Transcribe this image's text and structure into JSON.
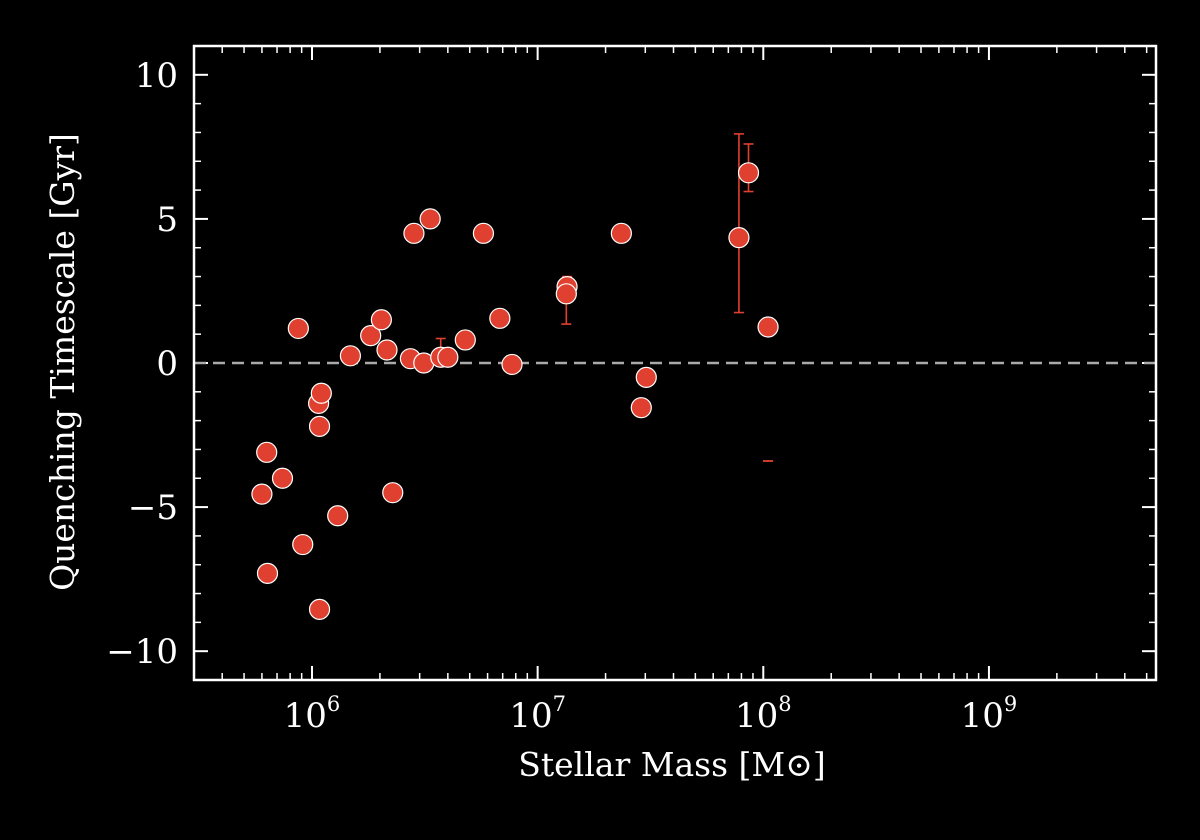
{
  "chart_data": {
    "type": "scatter",
    "title": "",
    "xlabel": "Stellar Mass [M⊙]",
    "ylabel": "Quenching Timescale [Gyr]",
    "x_scale": "log",
    "xlim": [
      300000,
      5500000000
    ],
    "ylim": [
      -11,
      11
    ],
    "x_ticks": [
      {
        "value": 1000000,
        "base": "10",
        "exp": "6"
      },
      {
        "value": 10000000,
        "base": "10",
        "exp": "7"
      },
      {
        "value": 100000000,
        "base": "10",
        "exp": "8"
      },
      {
        "value": 1000000000,
        "base": "10",
        "exp": "9"
      }
    ],
    "y_ticks": [
      {
        "value": 10,
        "label": "10"
      },
      {
        "value": 5,
        "label": "5"
      },
      {
        "value": 0,
        "label": "0"
      },
      {
        "value": -5,
        "label": "−5"
      },
      {
        "value": -10,
        "label": "−10"
      }
    ],
    "reference_line": {
      "y": 0,
      "style": "dashed",
      "color": "#aaaaaa"
    },
    "grid": false,
    "colors": {
      "marker": "#e0402f",
      "marker_edge": "#ffffff",
      "errorbar": "#e0402f",
      "axes": "#ffffff",
      "background": "#000000"
    },
    "points": [
      {
        "x": 600000,
        "y": -4.55
      },
      {
        "x": 630000,
        "y": -3.1
      },
      {
        "x": 635000,
        "y": -7.3
      },
      {
        "x": 740000,
        "y": -4.0
      },
      {
        "x": 870000,
        "y": 1.2
      },
      {
        "x": 910000,
        "y": -6.3
      },
      {
        "x": 1070000,
        "y": -1.4
      },
      {
        "x": 1080000,
        "y": -2.2
      },
      {
        "x": 1080000,
        "y": -8.55
      },
      {
        "x": 1100000,
        "y": -1.05
      },
      {
        "x": 1300000,
        "y": -5.3,
        "yerr_low": -5.55,
        "yerr_high": -5.05
      },
      {
        "x": 1480000,
        "y": 0.25
      },
      {
        "x": 1820000,
        "y": 0.95
      },
      {
        "x": 2030000,
        "y": 1.5
      },
      {
        "x": 2150000,
        "y": 0.45
      },
      {
        "x": 2280000,
        "y": -4.5
      },
      {
        "x": 2730000,
        "y": 0.15
      },
      {
        "x": 2830000,
        "y": 4.5
      },
      {
        "x": 3130000,
        "y": 0.0
      },
      {
        "x": 3340000,
        "y": 5.0
      },
      {
        "x": 3720000,
        "y": 0.2,
        "yerr_low": -0.1,
        "yerr_high": 0.85
      },
      {
        "x": 4000000,
        "y": 0.2
      },
      {
        "x": 4780000,
        "y": 0.8
      },
      {
        "x": 5750000,
        "y": 4.5
      },
      {
        "x": 6800000,
        "y": 1.55
      },
      {
        "x": 7700000,
        "y": -0.05
      },
      {
        "x": 13500000,
        "y": 2.65,
        "yerr_low": 2.2,
        "yerr_high": 3.0
      },
      {
        "x": 13400000,
        "y": 2.4,
        "yerr_low": 1.35,
        "yerr_high": 2.7
      },
      {
        "x": 23500000,
        "y": 4.5
      },
      {
        "x": 28800000,
        "y": -1.55
      },
      {
        "x": 30300000,
        "y": -0.5
      },
      {
        "x": 78000000,
        "y": 4.35,
        "yerr_low": 1.75,
        "yerr_high": 7.95
      },
      {
        "x": 86000000,
        "y": 6.6,
        "yerr_low": 5.95,
        "yerr_high": 7.6
      },
      {
        "x": 105000000,
        "y": 1.25
      },
      {
        "x": 105000000,
        "y": -3.4,
        "marker": "none",
        "yerr_low": -3.4,
        "yerr_high": -3.4
      }
    ]
  }
}
